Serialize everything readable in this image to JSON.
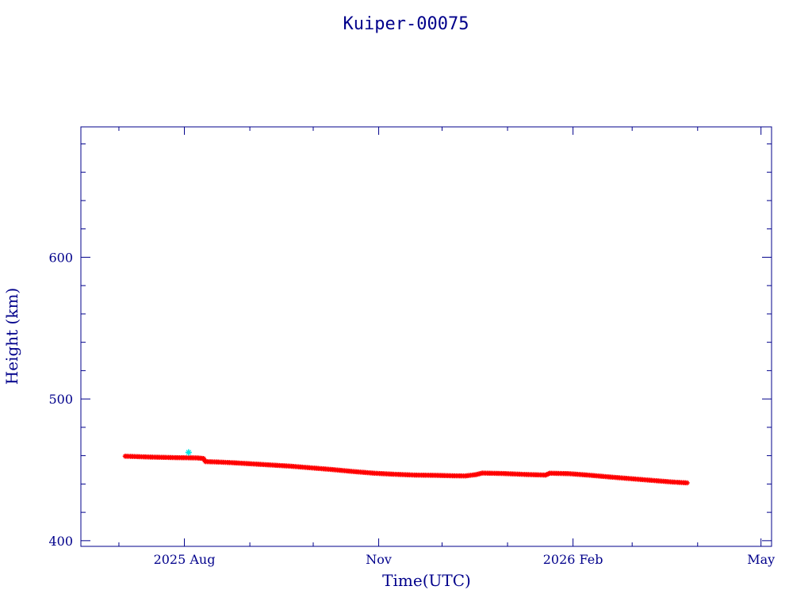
{
  "chart_data": {
    "type": "scatter",
    "title": "Kuiper-00075",
    "xlabel": "Time(UTC)",
    "ylabel": "Height (km)",
    "xlim": [
      "2025-06-13",
      "2026-05-06"
    ],
    "ylim": [
      396,
      692
    ],
    "x_ticks": [
      {
        "date": "2025-08-01",
        "label": "2025 Aug"
      },
      {
        "date": "2025-11-01",
        "label": "Nov"
      },
      {
        "date": "2026-02-01",
        "label": "2026 Feb"
      },
      {
        "date": "2026-05-01",
        "label": "May"
      }
    ],
    "y_ticks": [
      400,
      500,
      600
    ],
    "grid": false,
    "colors": {
      "frame": "#00008b",
      "main_series": "#ff0000",
      "outlier": "#00e5e5"
    },
    "series": [
      {
        "color": "#ff0000",
        "points": [
          {
            "x": "2025-07-04",
            "y": 459.6
          },
          {
            "x": "2025-07-10",
            "y": 459.3
          },
          {
            "x": "2025-07-16",
            "y": 459.0
          },
          {
            "x": "2025-07-22",
            "y": 458.8
          },
          {
            "x": "2025-07-28",
            "y": 458.6
          },
          {
            "x": "2025-08-03",
            "y": 458.5
          },
          {
            "x": "2025-08-07",
            "y": 458.4
          },
          {
            "x": "2025-08-10",
            "y": 458.0
          },
          {
            "x": "2025-08-11",
            "y": 455.8
          },
          {
            "x": "2025-08-17",
            "y": 455.5
          },
          {
            "x": "2025-08-24",
            "y": 455.0
          },
          {
            "x": "2025-09-01",
            "y": 454.3
          },
          {
            "x": "2025-09-10",
            "y": 453.5
          },
          {
            "x": "2025-09-20",
            "y": 452.6
          },
          {
            "x": "2025-09-30",
            "y": 451.4
          },
          {
            "x": "2025-10-10",
            "y": 450.2
          },
          {
            "x": "2025-10-20",
            "y": 448.8
          },
          {
            "x": "2025-10-30",
            "y": 447.6
          },
          {
            "x": "2025-11-08",
            "y": 446.9
          },
          {
            "x": "2025-11-18",
            "y": 446.3
          },
          {
            "x": "2025-11-28",
            "y": 446.1
          },
          {
            "x": "2025-12-06",
            "y": 445.8
          },
          {
            "x": "2025-12-12",
            "y": 445.7
          },
          {
            "x": "2025-12-17",
            "y": 446.6
          },
          {
            "x": "2025-12-20",
            "y": 447.7
          },
          {
            "x": "2025-12-30",
            "y": 447.4
          },
          {
            "x": "2026-01-10",
            "y": 446.7
          },
          {
            "x": "2026-01-19",
            "y": 446.3
          },
          {
            "x": "2026-01-21",
            "y": 447.6
          },
          {
            "x": "2026-01-30",
            "y": 447.3
          },
          {
            "x": "2026-02-08",
            "y": 446.3
          },
          {
            "x": "2026-02-18",
            "y": 445.0
          },
          {
            "x": "2026-02-28",
            "y": 443.8
          },
          {
            "x": "2026-03-10",
            "y": 442.6
          },
          {
            "x": "2026-03-20",
            "y": 441.4
          },
          {
            "x": "2026-03-27",
            "y": 440.8
          }
        ]
      },
      {
        "color": "#00e5e5",
        "points": [
          {
            "x": "2025-08-03",
            "y": 462.3
          }
        ]
      }
    ]
  }
}
